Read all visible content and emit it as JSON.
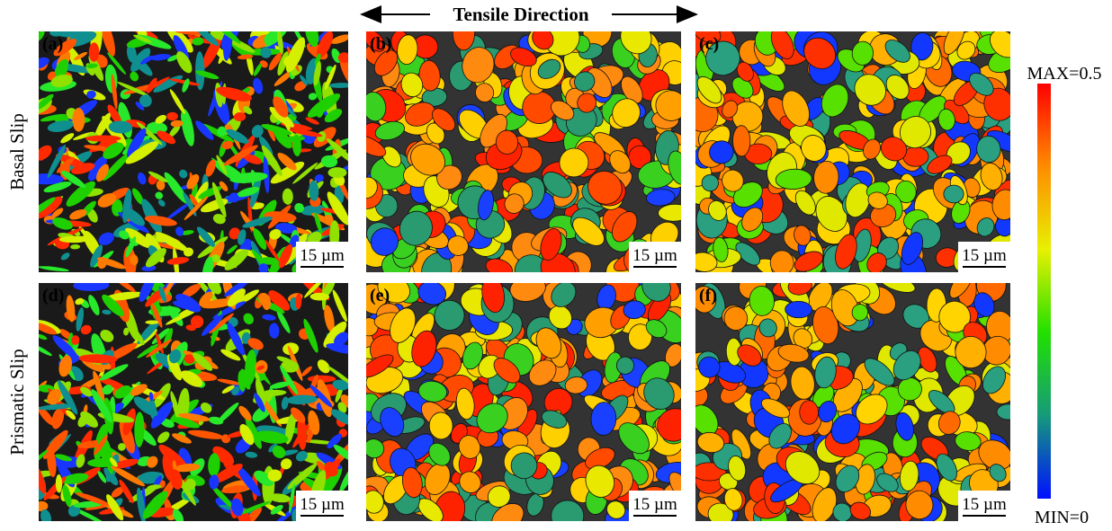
{
  "header": {
    "title": "Tensile Direction"
  },
  "rows": [
    {
      "label": "Basal Slip",
      "panels": [
        {
          "label": "(a)",
          "scale_bar": "15 µm"
        },
        {
          "label": "(b)",
          "scale_bar": "15 µm"
        },
        {
          "label": "(c)",
          "scale_bar": "15 µm"
        }
      ]
    },
    {
      "label": "Prismatic Slip",
      "panels": [
        {
          "label": "(d)",
          "scale_bar": "15 µm"
        },
        {
          "label": "(e)",
          "scale_bar": "15 µm"
        },
        {
          "label": "(f)",
          "scale_bar": "15 µm"
        }
      ]
    }
  ],
  "colorbar": {
    "max_label": "MAX=0.5",
    "min_label": "MIN=0"
  }
}
